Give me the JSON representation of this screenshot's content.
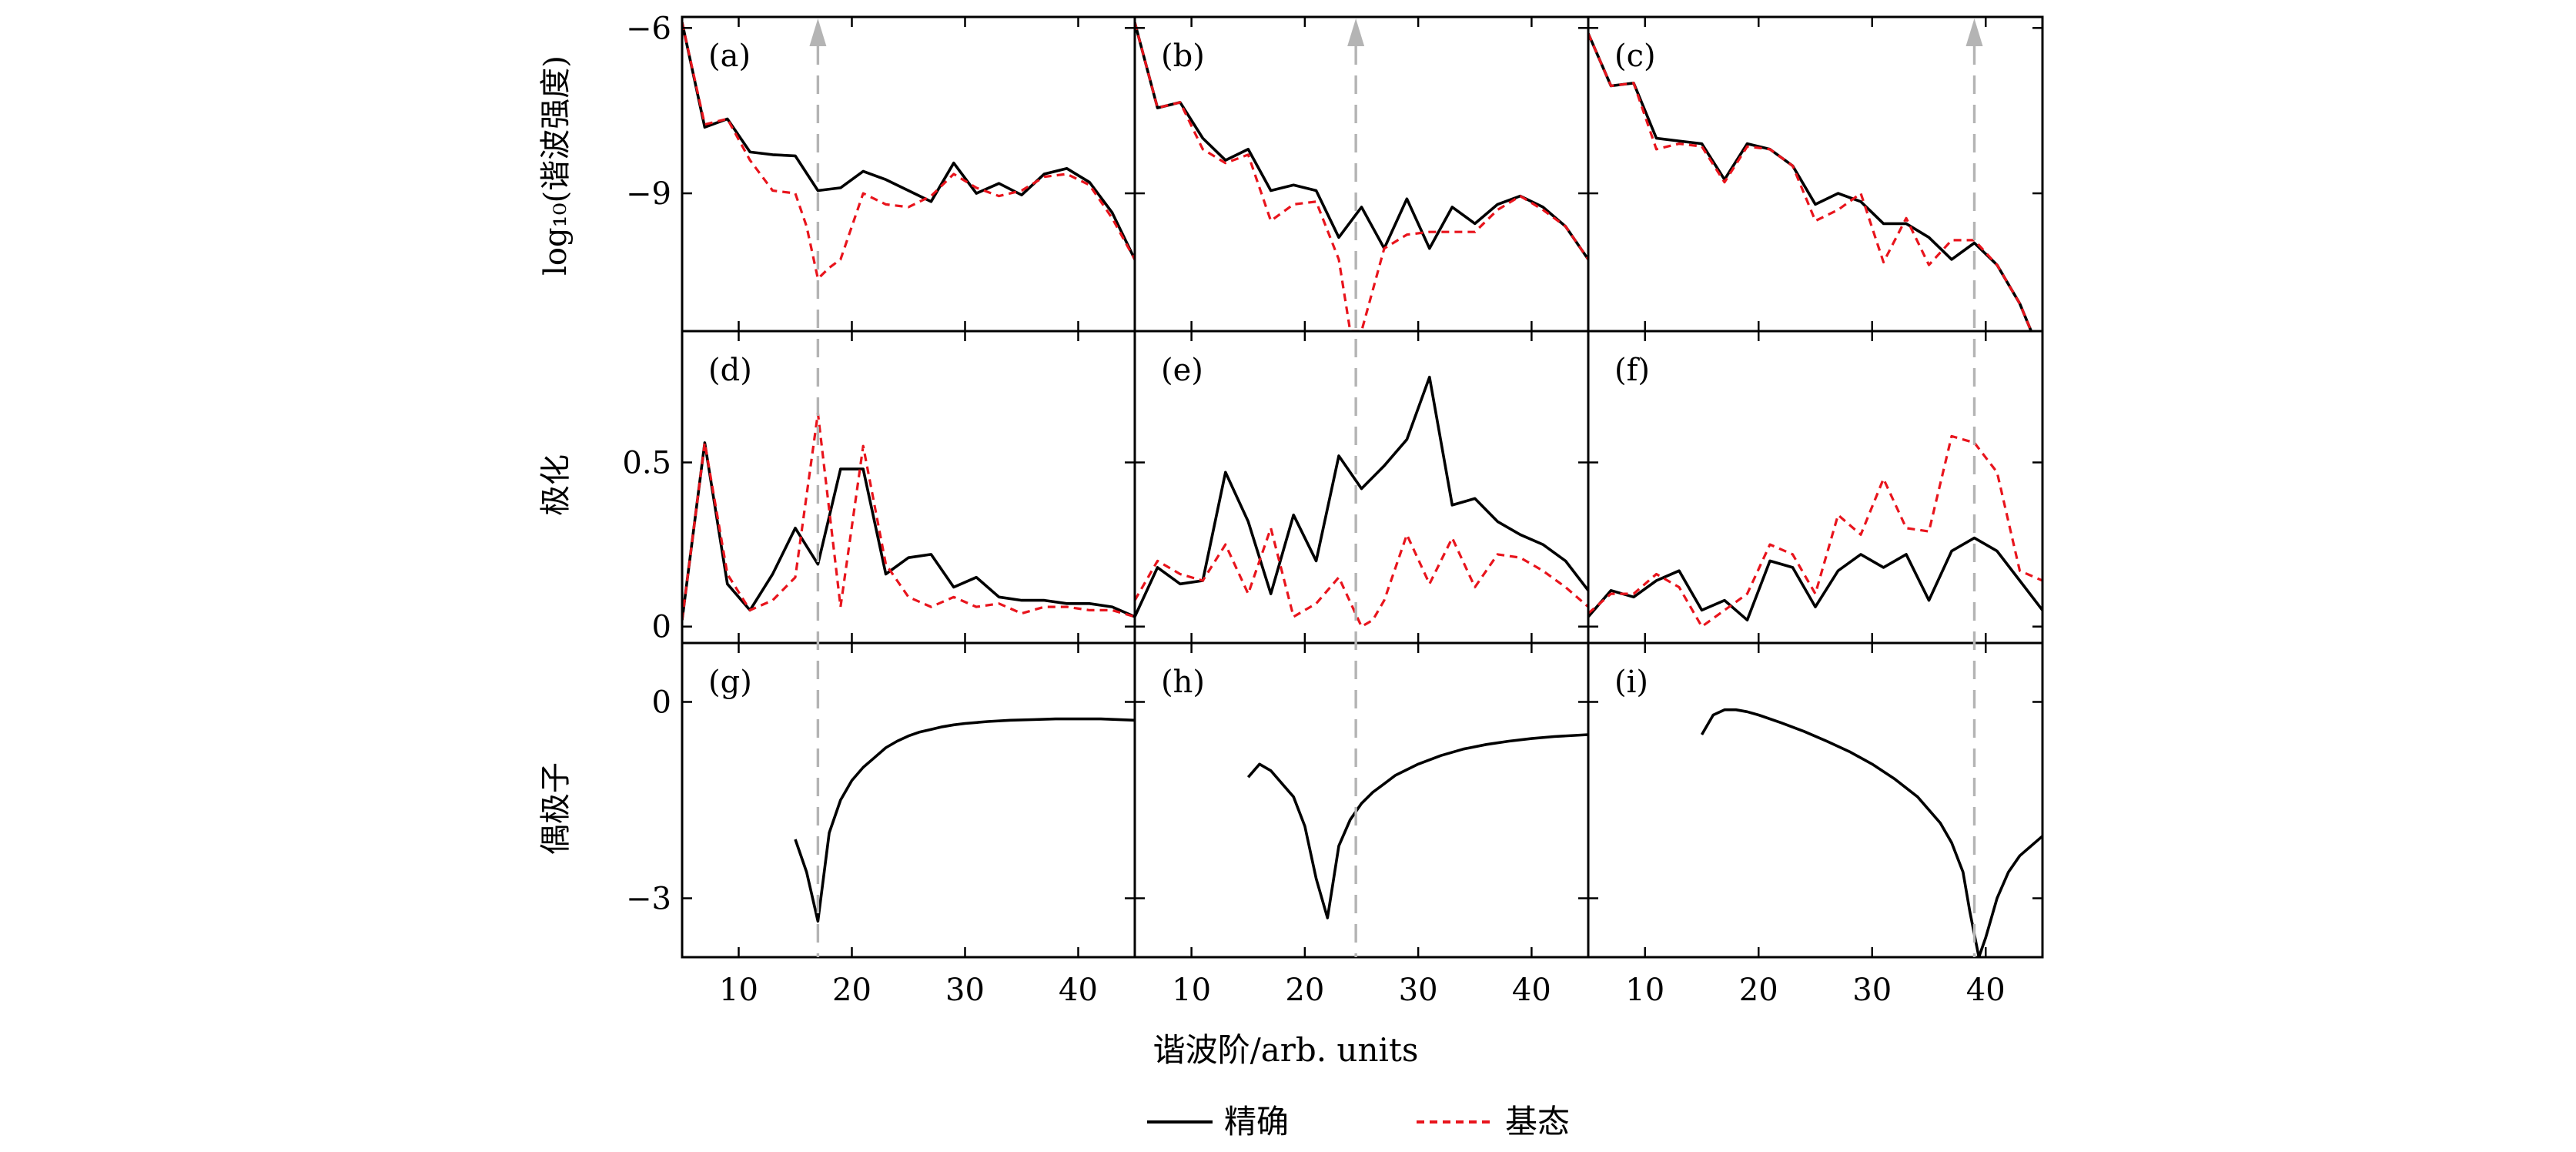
{
  "figure": {
    "row_labels": [
      "log₁₀(谐波强度)",
      "极化",
      "偶极子"
    ],
    "xlabel": "谐波阶/arb. units",
    "legend": [
      {
        "name": "精确",
        "color": "#000000",
        "style": "solid"
      },
      {
        "name": "基态",
        "color": "#e8141c",
        "style": "dashed"
      }
    ],
    "guide_color": "#b4b4b4"
  },
  "chart_data": [
    {
      "type": "line",
      "panel": "(a)",
      "row": 0,
      "col": 0,
      "xlim": [
        5,
        45
      ],
      "ylim": [
        -11.5,
        -5.8
      ],
      "yticks": [
        -6,
        -9
      ],
      "yticklabels": [
        "−6",
        "−9"
      ],
      "xticks": [
        10,
        20,
        30,
        40
      ],
      "show_xticklabels": false,
      "marker_x": 17,
      "series": [
        {
          "name": "精确",
          "x": [
            5,
            7,
            9,
            11,
            13,
            15,
            17,
            19,
            21,
            23,
            25,
            27,
            29,
            31,
            33,
            35,
            37,
            39,
            41,
            43,
            45
          ],
          "values": [
            -5.9,
            -7.8,
            -7.65,
            -8.25,
            -8.3,
            -8.32,
            -8.95,
            -8.9,
            -8.6,
            -8.75,
            -8.95,
            -9.15,
            -8.45,
            -9.0,
            -8.82,
            -9.03,
            -8.65,
            -8.55,
            -8.8,
            -9.35,
            -10.2
          ]
        },
        {
          "name": "基态",
          "x": [
            5,
            7,
            9,
            11,
            13,
            15,
            16,
            17,
            18,
            19,
            21,
            23,
            25,
            27,
            29,
            31,
            33,
            35,
            37,
            39,
            41,
            43,
            45
          ],
          "values": [
            -5.9,
            -7.75,
            -7.65,
            -8.4,
            -8.95,
            -9.0,
            -9.6,
            -10.55,
            -10.35,
            -10.2,
            -9.0,
            -9.2,
            -9.25,
            -9.05,
            -8.65,
            -8.9,
            -9.05,
            -8.95,
            -8.7,
            -8.65,
            -8.85,
            -9.45,
            -10.2
          ]
        }
      ]
    },
    {
      "type": "line",
      "panel": "(b)",
      "row": 0,
      "col": 1,
      "xlim": [
        5,
        45
      ],
      "ylim": [
        -11.5,
        -5.8
      ],
      "yticks": [
        -6,
        -9
      ],
      "yticklabels": [
        "−6",
        "−9"
      ],
      "xticks": [
        10,
        20,
        30,
        40
      ],
      "show_xticklabels": false,
      "marker_x": 24.5,
      "series": [
        {
          "name": "精确",
          "x": [
            5,
            7,
            9,
            11,
            13,
            15,
            17,
            19,
            21,
            23,
            25,
            27,
            29,
            31,
            33,
            35,
            37,
            39,
            41,
            43,
            45
          ],
          "values": [
            -5.9,
            -7.45,
            -7.35,
            -8.0,
            -8.4,
            -8.2,
            -8.95,
            -8.85,
            -8.95,
            -9.8,
            -9.25,
            -10.0,
            -9.1,
            -10.0,
            -9.25,
            -9.55,
            -9.2,
            -9.05,
            -9.25,
            -9.6,
            -10.2
          ]
        },
        {
          "name": "基态",
          "x": [
            5,
            7,
            9,
            11,
            13,
            15,
            17,
            19,
            21,
            23,
            24,
            25,
            27,
            29,
            31,
            33,
            35,
            37,
            39,
            41,
            43,
            45
          ],
          "values": [
            -5.9,
            -7.45,
            -7.35,
            -8.2,
            -8.45,
            -8.3,
            -9.5,
            -9.2,
            -9.15,
            -10.2,
            -11.5,
            -11.5,
            -10.0,
            -9.75,
            -9.7,
            -9.7,
            -9.7,
            -9.3,
            -9.05,
            -9.3,
            -9.6,
            -10.2
          ]
        }
      ]
    },
    {
      "type": "line",
      "panel": "(c)",
      "row": 0,
      "col": 2,
      "xlim": [
        5,
        45
      ],
      "ylim": [
        -11.5,
        -5.8
      ],
      "yticks": [
        -6,
        -9
      ],
      "yticklabels": [
        "−6",
        "−9"
      ],
      "xticks": [
        10,
        20,
        30,
        40
      ],
      "show_xticklabels": false,
      "marker_x": 39,
      "series": [
        {
          "name": "精确",
          "x": [
            5,
            7,
            9,
            11,
            13,
            15,
            17,
            19,
            21,
            23,
            25,
            27,
            29,
            31,
            33,
            35,
            37,
            39,
            41,
            43,
            44
          ],
          "values": [
            -6.1,
            -7.05,
            -7.0,
            -8.0,
            -8.05,
            -8.1,
            -8.75,
            -8.1,
            -8.2,
            -8.5,
            -9.2,
            -9.0,
            -9.15,
            -9.55,
            -9.55,
            -9.8,
            -10.2,
            -9.9,
            -10.3,
            -11.0,
            -11.5
          ]
        },
        {
          "name": "基态",
          "x": [
            5,
            7,
            9,
            11,
            13,
            15,
            17,
            19,
            21,
            23,
            25,
            27,
            29,
            31,
            33,
            35,
            37,
            39,
            41,
            43,
            44
          ],
          "values": [
            -6.1,
            -7.05,
            -7.0,
            -8.2,
            -8.1,
            -8.15,
            -8.8,
            -8.15,
            -8.2,
            -8.5,
            -9.5,
            -9.3,
            -9.0,
            -10.25,
            -9.45,
            -10.3,
            -9.85,
            -9.85,
            -10.3,
            -11.0,
            -11.5
          ]
        }
      ]
    },
    {
      "type": "line",
      "panel": "(d)",
      "row": 1,
      "col": 0,
      "xlim": [
        5,
        45
      ],
      "ylim": [
        -0.05,
        0.9
      ],
      "yticks": [
        0,
        0.5
      ],
      "yticklabels": [
        "0",
        "0.5"
      ],
      "xticks": [
        10,
        20,
        30,
        40
      ],
      "show_xticklabels": false,
      "marker_x": 17,
      "series": [
        {
          "name": "精确",
          "x": [
            5,
            7,
            9,
            11,
            13,
            15,
            17,
            19,
            21,
            23,
            25,
            27,
            29,
            31,
            33,
            35,
            37,
            39,
            41,
            43,
            45
          ],
          "values": [
            0.02,
            0.56,
            0.13,
            0.05,
            0.16,
            0.3,
            0.19,
            0.48,
            0.48,
            0.16,
            0.21,
            0.22,
            0.12,
            0.15,
            0.09,
            0.08,
            0.08,
            0.07,
            0.07,
            0.06,
            0.03
          ]
        },
        {
          "name": "基态",
          "x": [
            5,
            7,
            9,
            11,
            13,
            15,
            17,
            19,
            21,
            23,
            25,
            27,
            29,
            31,
            33,
            35,
            37,
            39,
            41,
            43,
            45
          ],
          "values": [
            0.02,
            0.56,
            0.16,
            0.05,
            0.08,
            0.15,
            0.65,
            0.06,
            0.55,
            0.19,
            0.09,
            0.06,
            0.09,
            0.06,
            0.07,
            0.04,
            0.06,
            0.06,
            0.05,
            0.05,
            0.03
          ]
        }
      ]
    },
    {
      "type": "line",
      "panel": "(e)",
      "row": 1,
      "col": 1,
      "xlim": [
        5,
        45
      ],
      "ylim": [
        -0.05,
        0.9
      ],
      "yticks": [
        0,
        0.5
      ],
      "yticklabels": [
        "0",
        "0.5"
      ],
      "xticks": [
        10,
        20,
        30,
        40
      ],
      "show_xticklabels": false,
      "marker_x": 24.5,
      "series": [
        {
          "name": "精确",
          "x": [
            5,
            7,
            9,
            11,
            13,
            15,
            17,
            19,
            21,
            23,
            25,
            27,
            29,
            31,
            33,
            35,
            37,
            39,
            41,
            43,
            45
          ],
          "values": [
            0.03,
            0.18,
            0.13,
            0.14,
            0.47,
            0.32,
            0.1,
            0.34,
            0.2,
            0.52,
            0.42,
            0.49,
            0.57,
            0.76,
            0.37,
            0.39,
            0.32,
            0.28,
            0.25,
            0.2,
            0.11
          ]
        },
        {
          "name": "基态",
          "x": [
            5,
            7,
            9,
            11,
            13,
            15,
            17,
            19,
            21,
            23,
            25,
            26,
            27,
            29,
            31,
            33,
            35,
            37,
            39,
            41,
            43,
            45
          ],
          "values": [
            0.08,
            0.2,
            0.16,
            0.14,
            0.25,
            0.1,
            0.3,
            0.03,
            0.07,
            0.15,
            0.0,
            0.02,
            0.08,
            0.28,
            0.13,
            0.27,
            0.12,
            0.22,
            0.21,
            0.17,
            0.12,
            0.06
          ]
        }
      ]
    },
    {
      "type": "line",
      "panel": "(f)",
      "row": 1,
      "col": 2,
      "xlim": [
        5,
        45
      ],
      "ylim": [
        -0.05,
        0.9
      ],
      "yticks": [
        0,
        0.5
      ],
      "yticklabels": [
        "0",
        "0.5"
      ],
      "xticks": [
        10,
        20,
        30,
        40
      ],
      "show_xticklabels": false,
      "marker_x": 39,
      "series": [
        {
          "name": "精确",
          "x": [
            5,
            7,
            9,
            11,
            13,
            15,
            17,
            19,
            21,
            23,
            25,
            27,
            29,
            31,
            33,
            35,
            37,
            39,
            41,
            43,
            45
          ],
          "values": [
            0.03,
            0.11,
            0.09,
            0.14,
            0.17,
            0.05,
            0.08,
            0.02,
            0.2,
            0.18,
            0.06,
            0.17,
            0.22,
            0.18,
            0.22,
            0.08,
            0.23,
            0.27,
            0.23,
            0.14,
            0.05
          ]
        },
        {
          "name": "基态",
          "x": [
            5,
            7,
            9,
            11,
            13,
            15,
            17,
            19,
            21,
            23,
            25,
            27,
            29,
            31,
            33,
            35,
            37,
            39,
            41,
            43,
            45
          ],
          "values": [
            0.04,
            0.1,
            0.1,
            0.16,
            0.12,
            0.0,
            0.05,
            0.1,
            0.25,
            0.22,
            0.1,
            0.34,
            0.28,
            0.45,
            0.3,
            0.29,
            0.58,
            0.56,
            0.47,
            0.17,
            0.14
          ]
        }
      ]
    },
    {
      "type": "line",
      "panel": "(g)",
      "row": 2,
      "col": 0,
      "xlim": [
        5,
        45
      ],
      "ylim": [
        -3.9,
        0.9
      ],
      "yticks": [
        0,
        -3
      ],
      "yticklabels": [
        "0",
        "−3"
      ],
      "xticks": [
        10,
        20,
        30,
        40
      ],
      "xticklabels": [
        "10",
        "20",
        "30",
        "40"
      ],
      "show_xticklabels": true,
      "marker_x": 17,
      "series": [
        {
          "name": "精确",
          "x": [
            15,
            16,
            17,
            18,
            19,
            20,
            21,
            22,
            23,
            24,
            25,
            26,
            27,
            28,
            29,
            30,
            32,
            34,
            36,
            38,
            40,
            42,
            45
          ],
          "values": [
            -2.1,
            -2.6,
            -3.35,
            -2.0,
            -1.5,
            -1.2,
            -1.0,
            -0.85,
            -0.7,
            -0.6,
            -0.52,
            -0.46,
            -0.42,
            -0.38,
            -0.35,
            -0.33,
            -0.3,
            -0.28,
            -0.27,
            -0.26,
            -0.26,
            -0.26,
            -0.28
          ]
        }
      ]
    },
    {
      "type": "line",
      "panel": "(h)",
      "row": 2,
      "col": 1,
      "xlim": [
        5,
        45
      ],
      "ylim": [
        -3.9,
        0.9
      ],
      "yticks": [
        0,
        -3
      ],
      "yticklabels": [
        "0",
        "−3"
      ],
      "xticks": [
        10,
        20,
        30,
        40
      ],
      "xticklabels": [
        "10",
        "20",
        "30",
        "40"
      ],
      "show_xticklabels": true,
      "marker_x": 24.5,
      "series": [
        {
          "name": "精确",
          "x": [
            15,
            16,
            17,
            18,
            19,
            20,
            21,
            22,
            23,
            24,
            25,
            26,
            27,
            28,
            30,
            32,
            34,
            36,
            38,
            40,
            42,
            45
          ],
          "values": [
            -1.15,
            -0.95,
            -1.05,
            -1.25,
            -1.45,
            -1.9,
            -2.7,
            -3.3,
            -2.2,
            -1.8,
            -1.55,
            -1.38,
            -1.25,
            -1.12,
            -0.95,
            -0.82,
            -0.72,
            -0.65,
            -0.6,
            -0.56,
            -0.53,
            -0.5
          ]
        }
      ]
    },
    {
      "type": "line",
      "panel": "(i)",
      "row": 2,
      "col": 2,
      "xlim": [
        5,
        45
      ],
      "ylim": [
        -3.9,
        0.9
      ],
      "yticks": [
        0,
        -3
      ],
      "yticklabels": [
        "0",
        "−3"
      ],
      "xticks": [
        10,
        20,
        30,
        40
      ],
      "xticklabels": [
        "10",
        "20",
        "30",
        "40"
      ],
      "show_xticklabels": true,
      "marker_x": 39,
      "series": [
        {
          "name": "精确",
          "x": [
            15,
            16,
            17,
            18,
            19,
            20,
            22,
            24,
            26,
            28,
            30,
            32,
            34,
            36,
            37,
            38,
            38.6,
            39.4,
            40,
            41,
            42,
            43,
            44,
            45
          ],
          "values": [
            -0.5,
            -0.2,
            -0.12,
            -0.12,
            -0.15,
            -0.2,
            -0.32,
            -0.45,
            -0.6,
            -0.76,
            -0.95,
            -1.18,
            -1.45,
            -1.85,
            -2.15,
            -2.6,
            -3.2,
            -3.9,
            -3.6,
            -3.0,
            -2.6,
            -2.35,
            -2.2,
            -2.05
          ]
        }
      ]
    }
  ]
}
